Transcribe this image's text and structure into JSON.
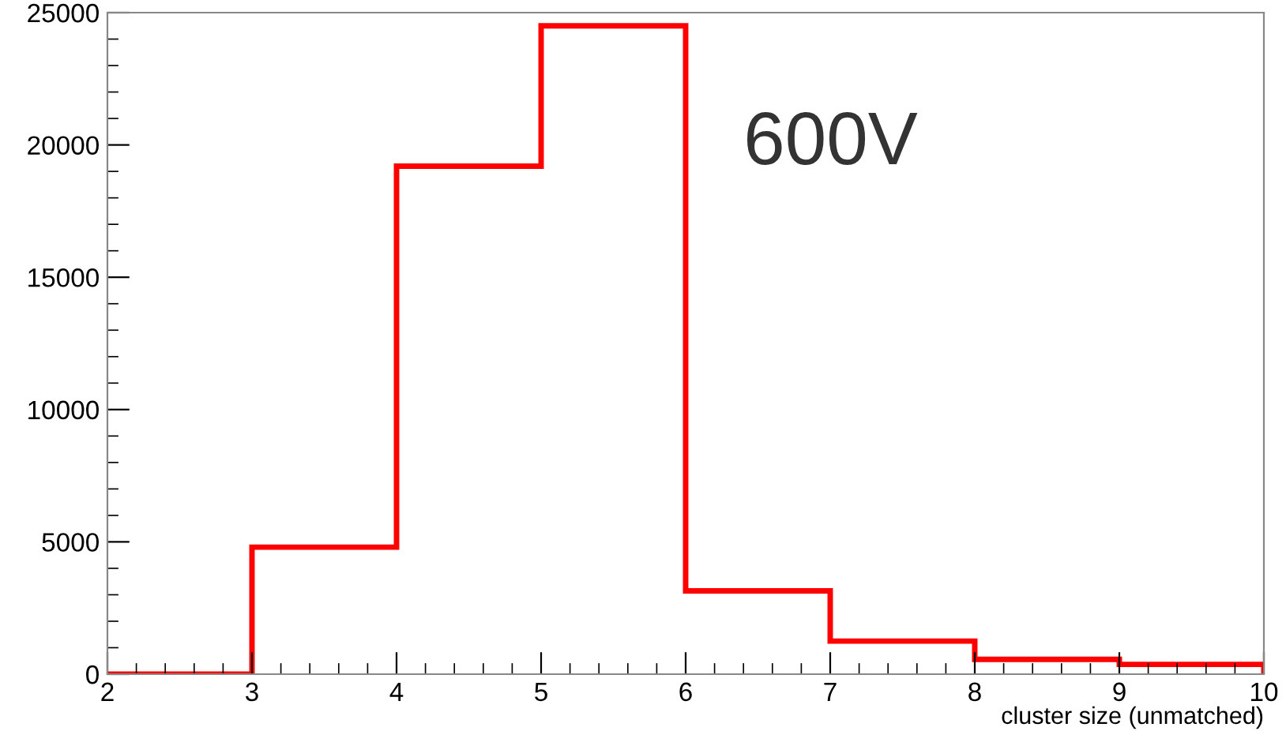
{
  "chart_data": {
    "type": "histogram",
    "xlabel": "cluster size (unmatched)",
    "annotations": [
      "600V"
    ],
    "bins": [
      2,
      3,
      4,
      5,
      6,
      7,
      8,
      9,
      10
    ],
    "values": [
      0,
      4800,
      19200,
      24500,
      3150,
      1250,
      560,
      370
    ],
    "color": "#ff0000",
    "xlim": [
      2,
      10
    ],
    "xticks": [
      2,
      3,
      4,
      5,
      6,
      7,
      8,
      9,
      10
    ],
    "ylim": [
      0,
      25000
    ],
    "yticks": [
      0,
      5000,
      10000,
      15000,
      20000,
      25000
    ],
    "grid": false,
    "legend": false
  }
}
